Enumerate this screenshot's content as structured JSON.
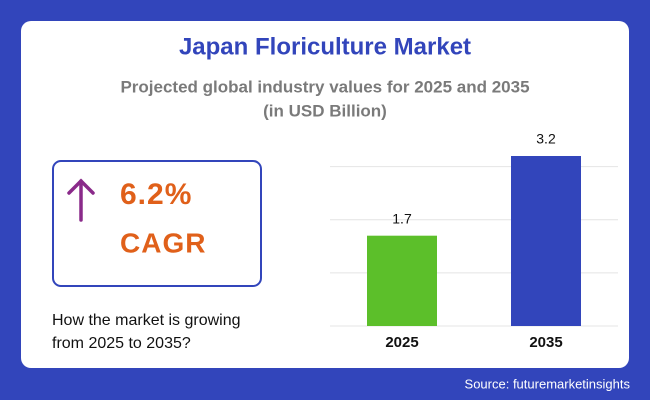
{
  "chart_data": {
    "type": "bar",
    "title": "Japan Floriculture Market",
    "subtitle": [
      "Projected global industry values for 2025 and 2035",
      "(in USD Billion)"
    ],
    "categories": [
      "2025",
      "2035"
    ],
    "values": [
      1.7,
      3.2
    ],
    "colors": [
      "#5cbf2a",
      "#3245bb"
    ],
    "ylim": [
      0,
      3.2
    ],
    "yticks": [
      0,
      1,
      2,
      3
    ],
    "grid": true
  },
  "callout": {
    "value": "6.2%",
    "label": "CAGR",
    "question": [
      "How the market is growing",
      "from 2025 to 2035?"
    ]
  },
  "source": "Source: futuremarketinsights"
}
